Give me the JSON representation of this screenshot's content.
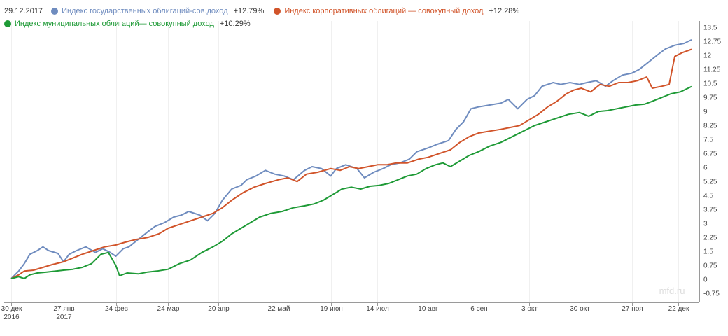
{
  "header": {
    "date": "29.12.2017"
  },
  "legend": [
    {
      "name": "Индекс государственных облигаций-сов.доход",
      "value": "+12.79%",
      "color": "#6f8cbf"
    },
    {
      "name": "Индекс корпоративных облигаций — совокупный доход",
      "value": "+12.28%",
      "color": "#d1542a"
    },
    {
      "name": "Индекс муниципальных облигаций— совокупный доход",
      "value": "+10.29%",
      "color": "#1e9a36"
    }
  ],
  "watermark": "mfd.ru",
  "chart_data": {
    "type": "line",
    "ylim": [
      -0.75,
      13.5
    ],
    "y_ticks": [
      -0.75,
      0,
      0.75,
      1.5,
      2.25,
      3,
      3.75,
      4.5,
      5.25,
      6,
      6.75,
      7.5,
      8.25,
      9,
      9.75,
      10.5,
      11.25,
      12,
      12.75,
      13.5
    ],
    "y_tick_labels": [
      "-0.75",
      "0",
      "0.75",
      "1.5",
      "2.25",
      "3",
      "3.75",
      "4.5",
      "5.25",
      "6",
      "6.75",
      "7.5",
      "8.25",
      "9",
      "9.75",
      "10.5",
      "11.25",
      "12",
      "12.75",
      "13.5"
    ],
    "x_ticks": [
      {
        "date": "2016-12-30",
        "label": "30 дек",
        "sublabel": "2016"
      },
      {
        "date": "2017-01-27",
        "label": "27 янв",
        "sublabel": "2017"
      },
      {
        "date": "2017-02-24",
        "label": "24 фев",
        "sublabel": ""
      },
      {
        "date": "2017-03-24",
        "label": "24 мар",
        "sublabel": ""
      },
      {
        "date": "2017-04-20",
        "label": "20 апр",
        "sublabel": ""
      },
      {
        "date": "2017-05-22",
        "label": "22 май",
        "sublabel": ""
      },
      {
        "date": "2017-06-19",
        "label": "19 июн",
        "sublabel": ""
      },
      {
        "date": "2017-07-14",
        "label": "14 июл",
        "sublabel": ""
      },
      {
        "date": "2017-08-10",
        "label": "10 авг",
        "sublabel": ""
      },
      {
        "date": "2017-09-06",
        "label": "6 сен",
        "sublabel": ""
      },
      {
        "date": "2017-10-03",
        "label": "3 окт",
        "sublabel": ""
      },
      {
        "date": "2017-10-30",
        "label": "30 окт",
        "sublabel": ""
      },
      {
        "date": "2017-11-27",
        "label": "27 ноя",
        "sublabel": ""
      },
      {
        "date": "2017-12-22",
        "label": "22 дек",
        "sublabel": ""
      }
    ],
    "x_range": [
      "2016-12-30",
      "2017-12-29"
    ],
    "series": [
      {
        "name": "Индекс государственных облигаций-сов.доход",
        "color": "#6f8cbf",
        "points": [
          [
            "2016-12-30",
            0
          ],
          [
            "2017-01-03",
            0.4
          ],
          [
            "2017-01-06",
            0.8
          ],
          [
            "2017-01-09",
            1.3
          ],
          [
            "2017-01-13",
            1.5
          ],
          [
            "2017-01-16",
            1.7
          ],
          [
            "2017-01-19",
            1.5
          ],
          [
            "2017-01-24",
            1.35
          ],
          [
            "2017-01-27",
            0.9
          ],
          [
            "2017-01-30",
            1.3
          ],
          [
            "2017-02-03",
            1.5
          ],
          [
            "2017-02-08",
            1.7
          ],
          [
            "2017-02-13",
            1.4
          ],
          [
            "2017-02-17",
            1.6
          ],
          [
            "2017-02-21",
            1.4
          ],
          [
            "2017-02-24",
            1.2
          ],
          [
            "2017-02-28",
            1.6
          ],
          [
            "2017-03-03",
            1.7
          ],
          [
            "2017-03-08",
            2.1
          ],
          [
            "2017-03-13",
            2.5
          ],
          [
            "2017-03-17",
            2.8
          ],
          [
            "2017-03-22",
            3.0
          ],
          [
            "2017-03-27",
            3.3
          ],
          [
            "2017-03-31",
            3.4
          ],
          [
            "2017-04-04",
            3.6
          ],
          [
            "2017-04-10",
            3.4
          ],
          [
            "2017-04-14",
            3.1
          ],
          [
            "2017-04-18",
            3.5
          ],
          [
            "2017-04-22",
            4.2
          ],
          [
            "2017-04-27",
            4.8
          ],
          [
            "2017-05-02",
            5.0
          ],
          [
            "2017-05-05",
            5.3
          ],
          [
            "2017-05-10",
            5.5
          ],
          [
            "2017-05-15",
            5.8
          ],
          [
            "2017-05-20",
            5.6
          ],
          [
            "2017-05-25",
            5.5
          ],
          [
            "2017-05-30",
            5.3
          ],
          [
            "2017-06-05",
            5.8
          ],
          [
            "2017-06-09",
            6.0
          ],
          [
            "2017-06-14",
            5.9
          ],
          [
            "2017-06-19",
            5.5
          ],
          [
            "2017-06-22",
            5.9
          ],
          [
            "2017-06-27",
            6.1
          ],
          [
            "2017-07-03",
            5.9
          ],
          [
            "2017-07-07",
            5.4
          ],
          [
            "2017-07-12",
            5.7
          ],
          [
            "2017-07-17",
            5.9
          ],
          [
            "2017-07-21",
            6.1
          ],
          [
            "2017-07-26",
            6.2
          ],
          [
            "2017-07-31",
            6.4
          ],
          [
            "2017-08-04",
            6.8
          ],
          [
            "2017-08-10",
            7.0
          ],
          [
            "2017-08-15",
            7.2
          ],
          [
            "2017-08-21",
            7.4
          ],
          [
            "2017-08-25",
            8.0
          ],
          [
            "2017-08-29",
            8.4
          ],
          [
            "2017-09-02",
            9.1
          ],
          [
            "2017-09-06",
            9.2
          ],
          [
            "2017-09-12",
            9.3
          ],
          [
            "2017-09-18",
            9.4
          ],
          [
            "2017-09-22",
            9.6
          ],
          [
            "2017-09-27",
            9.1
          ],
          [
            "2017-10-02",
            9.6
          ],
          [
            "2017-10-06",
            9.8
          ],
          [
            "2017-10-10",
            10.3
          ],
          [
            "2017-10-16",
            10.5
          ],
          [
            "2017-10-20",
            10.4
          ],
          [
            "2017-10-25",
            10.5
          ],
          [
            "2017-10-30",
            10.4
          ],
          [
            "2017-11-03",
            10.5
          ],
          [
            "2017-11-08",
            10.6
          ],
          [
            "2017-11-13",
            10.3
          ],
          [
            "2017-11-17",
            10.6
          ],
          [
            "2017-11-22",
            10.9
          ],
          [
            "2017-11-27",
            11.0
          ],
          [
            "2017-12-01",
            11.2
          ],
          [
            "2017-12-06",
            11.6
          ],
          [
            "2017-12-11",
            12.0
          ],
          [
            "2017-12-15",
            12.3
          ],
          [
            "2017-12-20",
            12.5
          ],
          [
            "2017-12-25",
            12.6
          ],
          [
            "2017-12-29",
            12.79
          ]
        ]
      },
      {
        "name": "Индекс корпоративных облигаций — совокупный доход",
        "color": "#d1542a",
        "points": [
          [
            "2016-12-30",
            0
          ],
          [
            "2017-01-03",
            0.2
          ],
          [
            "2017-01-06",
            0.4
          ],
          [
            "2017-01-11",
            0.45
          ],
          [
            "2017-01-16",
            0.6
          ],
          [
            "2017-01-21",
            0.75
          ],
          [
            "2017-01-27",
            0.9
          ],
          [
            "2017-02-01",
            1.1
          ],
          [
            "2017-02-06",
            1.3
          ],
          [
            "2017-02-12",
            1.5
          ],
          [
            "2017-02-18",
            1.7
          ],
          [
            "2017-02-24",
            1.8
          ],
          [
            "2017-03-01",
            1.95
          ],
          [
            "2017-03-07",
            2.1
          ],
          [
            "2017-03-13",
            2.2
          ],
          [
            "2017-03-19",
            2.4
          ],
          [
            "2017-03-24",
            2.7
          ],
          [
            "2017-03-30",
            2.9
          ],
          [
            "2017-04-05",
            3.1
          ],
          [
            "2017-04-11",
            3.3
          ],
          [
            "2017-04-17",
            3.5
          ],
          [
            "2017-04-22",
            3.8
          ],
          [
            "2017-04-27",
            4.2
          ],
          [
            "2017-05-03",
            4.6
          ],
          [
            "2017-05-09",
            4.9
          ],
          [
            "2017-05-15",
            5.1
          ],
          [
            "2017-05-22",
            5.3
          ],
          [
            "2017-05-27",
            5.4
          ],
          [
            "2017-06-01",
            5.2
          ],
          [
            "2017-06-06",
            5.6
          ],
          [
            "2017-06-12",
            5.7
          ],
          [
            "2017-06-19",
            5.9
          ],
          [
            "2017-06-24",
            5.8
          ],
          [
            "2017-06-29",
            6.0
          ],
          [
            "2017-07-04",
            5.9
          ],
          [
            "2017-07-09",
            6.0
          ],
          [
            "2017-07-14",
            6.1
          ],
          [
            "2017-07-19",
            6.1
          ],
          [
            "2017-07-24",
            6.2
          ],
          [
            "2017-07-30",
            6.2
          ],
          [
            "2017-08-05",
            6.4
          ],
          [
            "2017-08-10",
            6.5
          ],
          [
            "2017-08-16",
            6.7
          ],
          [
            "2017-08-22",
            6.9
          ],
          [
            "2017-08-27",
            7.3
          ],
          [
            "2017-09-01",
            7.6
          ],
          [
            "2017-09-06",
            7.8
          ],
          [
            "2017-09-12",
            7.9
          ],
          [
            "2017-09-18",
            8.0
          ],
          [
            "2017-09-23",
            8.1
          ],
          [
            "2017-09-28",
            8.2
          ],
          [
            "2017-10-03",
            8.5
          ],
          [
            "2017-10-08",
            8.8
          ],
          [
            "2017-10-13",
            9.2
          ],
          [
            "2017-10-18",
            9.5
          ],
          [
            "2017-10-23",
            9.9
          ],
          [
            "2017-10-27",
            10.1
          ],
          [
            "2017-10-31",
            10.2
          ],
          [
            "2017-11-05",
            10.0
          ],
          [
            "2017-11-10",
            10.4
          ],
          [
            "2017-11-15",
            10.3
          ],
          [
            "2017-11-20",
            10.5
          ],
          [
            "2017-11-25",
            10.5
          ],
          [
            "2017-11-30",
            10.6
          ],
          [
            "2017-12-05",
            10.8
          ],
          [
            "2017-12-08",
            10.2
          ],
          [
            "2017-12-13",
            10.3
          ],
          [
            "2017-12-17",
            10.4
          ],
          [
            "2017-12-20",
            11.9
          ],
          [
            "2017-12-24",
            12.1
          ],
          [
            "2017-12-29",
            12.28
          ]
        ]
      },
      {
        "name": "Индекс муниципальных облигаций— совокупный доход",
        "color": "#1e9a36",
        "points": [
          [
            "2016-12-30",
            0
          ],
          [
            "2017-01-03",
            0.1
          ],
          [
            "2017-01-06",
            0.0
          ],
          [
            "2017-01-09",
            0.2
          ],
          [
            "2017-01-13",
            0.3
          ],
          [
            "2017-01-18",
            0.35
          ],
          [
            "2017-01-23",
            0.4
          ],
          [
            "2017-01-27",
            0.45
          ],
          [
            "2017-02-01",
            0.5
          ],
          [
            "2017-02-06",
            0.6
          ],
          [
            "2017-02-11",
            0.8
          ],
          [
            "2017-02-16",
            1.3
          ],
          [
            "2017-02-20",
            1.4
          ],
          [
            "2017-02-24",
            0.7
          ],
          [
            "2017-02-26",
            0.15
          ],
          [
            "2017-03-02",
            0.3
          ],
          [
            "2017-03-08",
            0.25
          ],
          [
            "2017-03-13",
            0.35
          ],
          [
            "2017-03-18",
            0.4
          ],
          [
            "2017-03-24",
            0.5
          ],
          [
            "2017-03-30",
            0.8
          ],
          [
            "2017-04-05",
            1.0
          ],
          [
            "2017-04-11",
            1.4
          ],
          [
            "2017-04-17",
            1.7
          ],
          [
            "2017-04-22",
            2.0
          ],
          [
            "2017-04-27",
            2.4
          ],
          [
            "2017-05-02",
            2.7
          ],
          [
            "2017-05-07",
            3.0
          ],
          [
            "2017-05-12",
            3.3
          ],
          [
            "2017-05-18",
            3.5
          ],
          [
            "2017-05-24",
            3.6
          ],
          [
            "2017-05-30",
            3.8
          ],
          [
            "2017-06-05",
            3.9
          ],
          [
            "2017-06-10",
            4.0
          ],
          [
            "2017-06-15",
            4.2
          ],
          [
            "2017-06-20",
            4.5
          ],
          [
            "2017-06-25",
            4.8
          ],
          [
            "2017-06-30",
            4.9
          ],
          [
            "2017-07-05",
            4.8
          ],
          [
            "2017-07-10",
            4.95
          ],
          [
            "2017-07-15",
            5.0
          ],
          [
            "2017-07-20",
            5.1
          ],
          [
            "2017-07-25",
            5.3
          ],
          [
            "2017-07-30",
            5.5
          ],
          [
            "2017-08-04",
            5.6
          ],
          [
            "2017-08-09",
            5.9
          ],
          [
            "2017-08-14",
            6.1
          ],
          [
            "2017-08-18",
            6.2
          ],
          [
            "2017-08-22",
            6.0
          ],
          [
            "2017-08-27",
            6.3
          ],
          [
            "2017-09-01",
            6.6
          ],
          [
            "2017-09-06",
            6.8
          ],
          [
            "2017-09-12",
            7.1
          ],
          [
            "2017-09-18",
            7.3
          ],
          [
            "2017-09-24",
            7.6
          ],
          [
            "2017-09-30",
            7.9
          ],
          [
            "2017-10-06",
            8.2
          ],
          [
            "2017-10-12",
            8.4
          ],
          [
            "2017-10-18",
            8.6
          ],
          [
            "2017-10-24",
            8.8
          ],
          [
            "2017-10-30",
            8.9
          ],
          [
            "2017-11-04",
            8.7
          ],
          [
            "2017-11-09",
            8.95
          ],
          [
            "2017-11-14",
            9.0
          ],
          [
            "2017-11-19",
            9.1
          ],
          [
            "2017-11-24",
            9.2
          ],
          [
            "2017-11-29",
            9.3
          ],
          [
            "2017-12-04",
            9.35
          ],
          [
            "2017-12-08",
            9.5
          ],
          [
            "2017-12-13",
            9.7
          ],
          [
            "2017-12-18",
            9.9
          ],
          [
            "2017-12-23",
            10.0
          ],
          [
            "2017-12-29",
            10.29
          ]
        ]
      }
    ]
  }
}
